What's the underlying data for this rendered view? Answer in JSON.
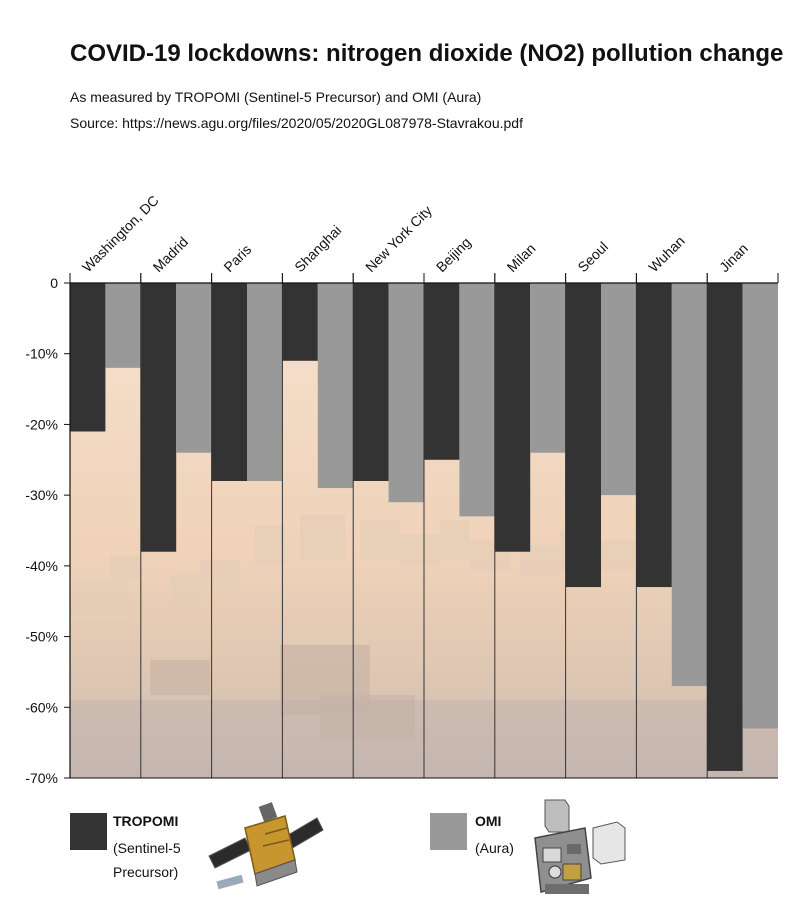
{
  "title": "COVID-19 lockdowns: nitrogen dioxide (NO2) pollution change",
  "subtitle": "As measured by TROPOMI (Sentinel-5 Precursor) and OMI (Aura)",
  "source": "Source: https://news.agu.org/files/2020/05/2020GL087978-Stavrakou.pdf",
  "legend": {
    "tropomi": {
      "name": "TROPOMI",
      "line1": "(Sentinel-5",
      "line2": "Precursor)",
      "color": "#333333",
      "icon": "satellite-icon"
    },
    "omi": {
      "name": "OMI",
      "line1": "(Aura)",
      "color": "#999999",
      "icon": "satellite-icon"
    }
  },
  "colors": {
    "background_haze": "#f1d5bd",
    "skyline": "#d9c4b0"
  },
  "chart_data": {
    "type": "bar",
    "categories": [
      "Washington, DC",
      "Madrid",
      "Paris",
      "Shanghai",
      "New York City",
      "Beijing",
      "Milan",
      "Seoul",
      "Wuhan",
      "Jinan"
    ],
    "series": [
      {
        "name": "TROPOMI",
        "color": "#333333",
        "values": [
          -21,
          -38,
          -28,
          -11,
          -28,
          -25,
          -38,
          -43,
          -43,
          -69
        ]
      },
      {
        "name": "OMI",
        "color": "#999999",
        "values": [
          -12,
          -24,
          -28,
          -29,
          -31,
          -33,
          -24,
          -30,
          -57,
          -63
        ]
      }
    ],
    "ylim": [
      -70,
      0
    ],
    "yticks": [
      "0",
      "-10%",
      "-20%",
      "-30%",
      "-40%",
      "-50%",
      "-60%",
      "-70%"
    ],
    "ytick_values": [
      0,
      -10,
      -20,
      -30,
      -40,
      -50,
      -60,
      -70
    ],
    "category_axis": "top",
    "xlabel": "",
    "ylabel": ""
  }
}
